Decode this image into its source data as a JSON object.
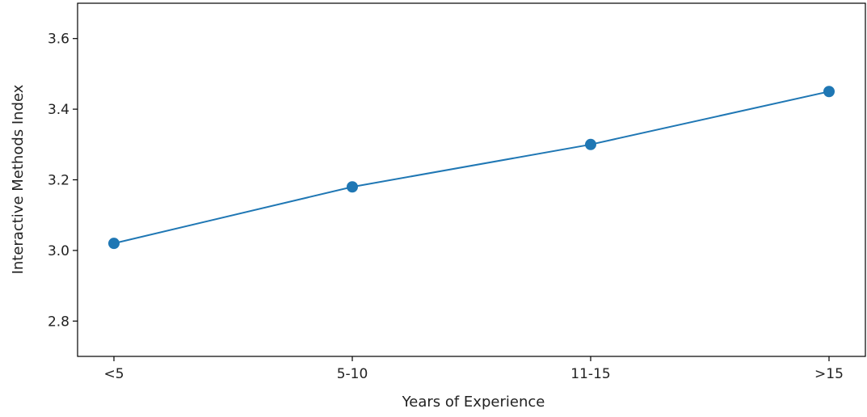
{
  "chart_data": {
    "type": "line",
    "title": "",
    "xlabel": "Years of Experience",
    "ylabel": "Interactive Methods Index",
    "categories": [
      "<5",
      "5-10",
      "11-15",
      ">15"
    ],
    "series": [
      {
        "values": [
          3.02,
          3.18,
          3.3,
          3.45
        ],
        "color": "#1f77b4"
      }
    ],
    "ylim": [
      2.7,
      3.7
    ],
    "yticks": [
      2.8,
      3.0,
      3.2,
      3.4,
      3.6
    ],
    "ytick_labels": [
      "2.8",
      "3.0",
      "3.2",
      "3.4",
      "3.6"
    ],
    "grid": false,
    "markers": true
  }
}
